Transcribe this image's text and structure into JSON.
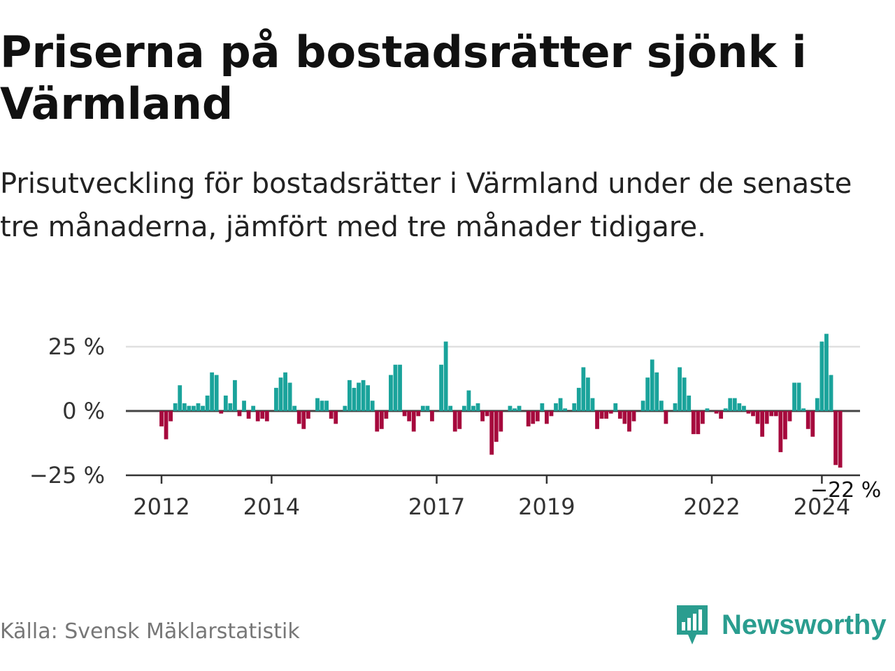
{
  "title": "Priserna på bostadsrätter sjönk i Värmland",
  "subtitle": "Prisutveckling för bostadsrätter i Värmland under de senaste tre månaderna, jämfört med tre månader tidigare.",
  "source": "Källa: Svensk Mäklarstatistik",
  "brand": {
    "name": "Newsworthy",
    "icon": "newsworthy-logo-icon"
  },
  "colors": {
    "positive": "#1aa39b",
    "negative": "#a6093d",
    "brand": "#2a9d8f",
    "grid": "#e0e0e0",
    "zero_line": "#444444"
  },
  "chart_data": {
    "type": "bar",
    "title": "Priserna på bostadsrätter sjönk i Värmland",
    "xlabel": "",
    "ylabel": "",
    "unit": "%",
    "ylim": [
      -25,
      28
    ],
    "grid": true,
    "x_start": 2012.0,
    "step": 0.0833333,
    "y_ticks": [
      {
        "value": 25,
        "label": "25 %"
      },
      {
        "value": 0,
        "label": "0 %"
      },
      {
        "value": -25,
        "label": "−25 %"
      }
    ],
    "x_ticks": [
      {
        "value": 2012,
        "label": "2012"
      },
      {
        "value": 2014,
        "label": "2014"
      },
      {
        "value": 2017,
        "label": "2017"
      },
      {
        "value": 2019,
        "label": "2019"
      },
      {
        "value": 2022,
        "label": "2022"
      },
      {
        "value": 2024,
        "label": "2024"
      }
    ],
    "values": [
      -6,
      -11,
      -4,
      3,
      10,
      3,
      2,
      2,
      3,
      2,
      6,
      15,
      14,
      -1,
      6,
      3,
      12,
      -2,
      4,
      -3,
      2,
      -4,
      -3,
      -4,
      0,
      9,
      13,
      15,
      11,
      2,
      -5,
      -7,
      -3,
      0,
      5,
      4,
      4,
      -3,
      -5,
      0,
      2,
      12,
      9,
      11,
      12,
      10,
      4,
      -8,
      -7,
      -3,
      14,
      18,
      18,
      -2,
      -4,
      -8,
      -2,
      2,
      2,
      -4,
      0,
      18,
      27,
      2,
      -8,
      -7,
      2,
      8,
      2,
      3,
      -4,
      -2,
      -17,
      -12,
      -8,
      0,
      2,
      1,
      2,
      0,
      -6,
      -5,
      -4,
      3,
      -5,
      -2,
      3,
      5,
      1,
      0,
      3,
      9,
      17,
      13,
      5,
      -7,
      -3,
      -3,
      -1,
      3,
      -3,
      -5,
      -8,
      -4,
      0,
      4,
      13,
      20,
      15,
      4,
      -5,
      0,
      3,
      17,
      13,
      6,
      -9,
      -9,
      -5,
      1,
      0,
      -1,
      -3,
      1,
      5,
      5,
      3,
      2,
      -1,
      -2,
      -5,
      -10,
      -5,
      -2,
      -2,
      -16,
      -11,
      -4,
      11,
      11,
      1,
      -7,
      -10,
      5,
      27,
      30,
      14,
      -21,
      -22
    ],
    "annotation": {
      "text": "−22 %",
      "value": -22,
      "position": "last-bar"
    }
  }
}
